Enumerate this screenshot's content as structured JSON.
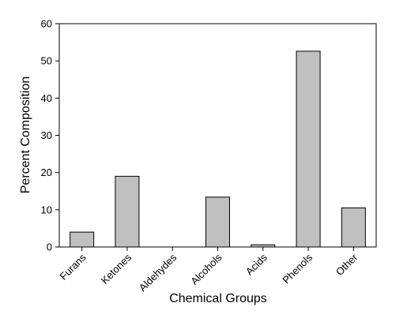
{
  "chart_data": {
    "type": "bar",
    "categories": [
      "Furans",
      "Ketones",
      "Aldehydes",
      "Alcohols",
      "Acids",
      "Phenols",
      "Other"
    ],
    "values": [
      4.0,
      19.0,
      0.0,
      13.4,
      0.6,
      52.6,
      10.5
    ],
    "title": "",
    "xlabel": "Chemical Groups",
    "ylabel": "Percent Composition",
    "ylim": [
      0,
      60
    ],
    "yticks": [
      0,
      10,
      20,
      30,
      40,
      50,
      60
    ],
    "grid": false,
    "legend": "none",
    "bar_color": "#c0c0c0",
    "bar_edge_color": "#000000"
  }
}
